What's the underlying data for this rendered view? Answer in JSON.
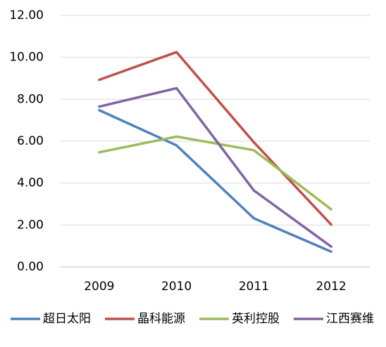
{
  "chart_data": {
    "type": "line",
    "categories": [
      "2009",
      "2010",
      "2011",
      "2012"
    ],
    "ylim": [
      0,
      12
    ],
    "yticks": [
      "0.00",
      "2.00",
      "4.00",
      "6.00",
      "8.00",
      "10.00",
      "12.00"
    ],
    "ytick_values": [
      0,
      2,
      4,
      6,
      8,
      10,
      12
    ],
    "grid": true,
    "legend_position": "bottom",
    "series": [
      {
        "name": "超日太阳",
        "color": "#4f81bd",
        "values": [
          7.48,
          5.8,
          2.32,
          0.73
        ]
      },
      {
        "name": "晶科能源",
        "color": "#c0504d",
        "values": [
          8.93,
          10.25,
          5.95,
          2.02
        ]
      },
      {
        "name": "英利控股",
        "color": "#9bbb59",
        "values": [
          5.47,
          6.22,
          5.57,
          2.75
        ]
      },
      {
        "name": "江西赛维",
        "color": "#8064a2",
        "values": [
          7.65,
          8.53,
          3.65,
          0.97
        ]
      }
    ]
  }
}
